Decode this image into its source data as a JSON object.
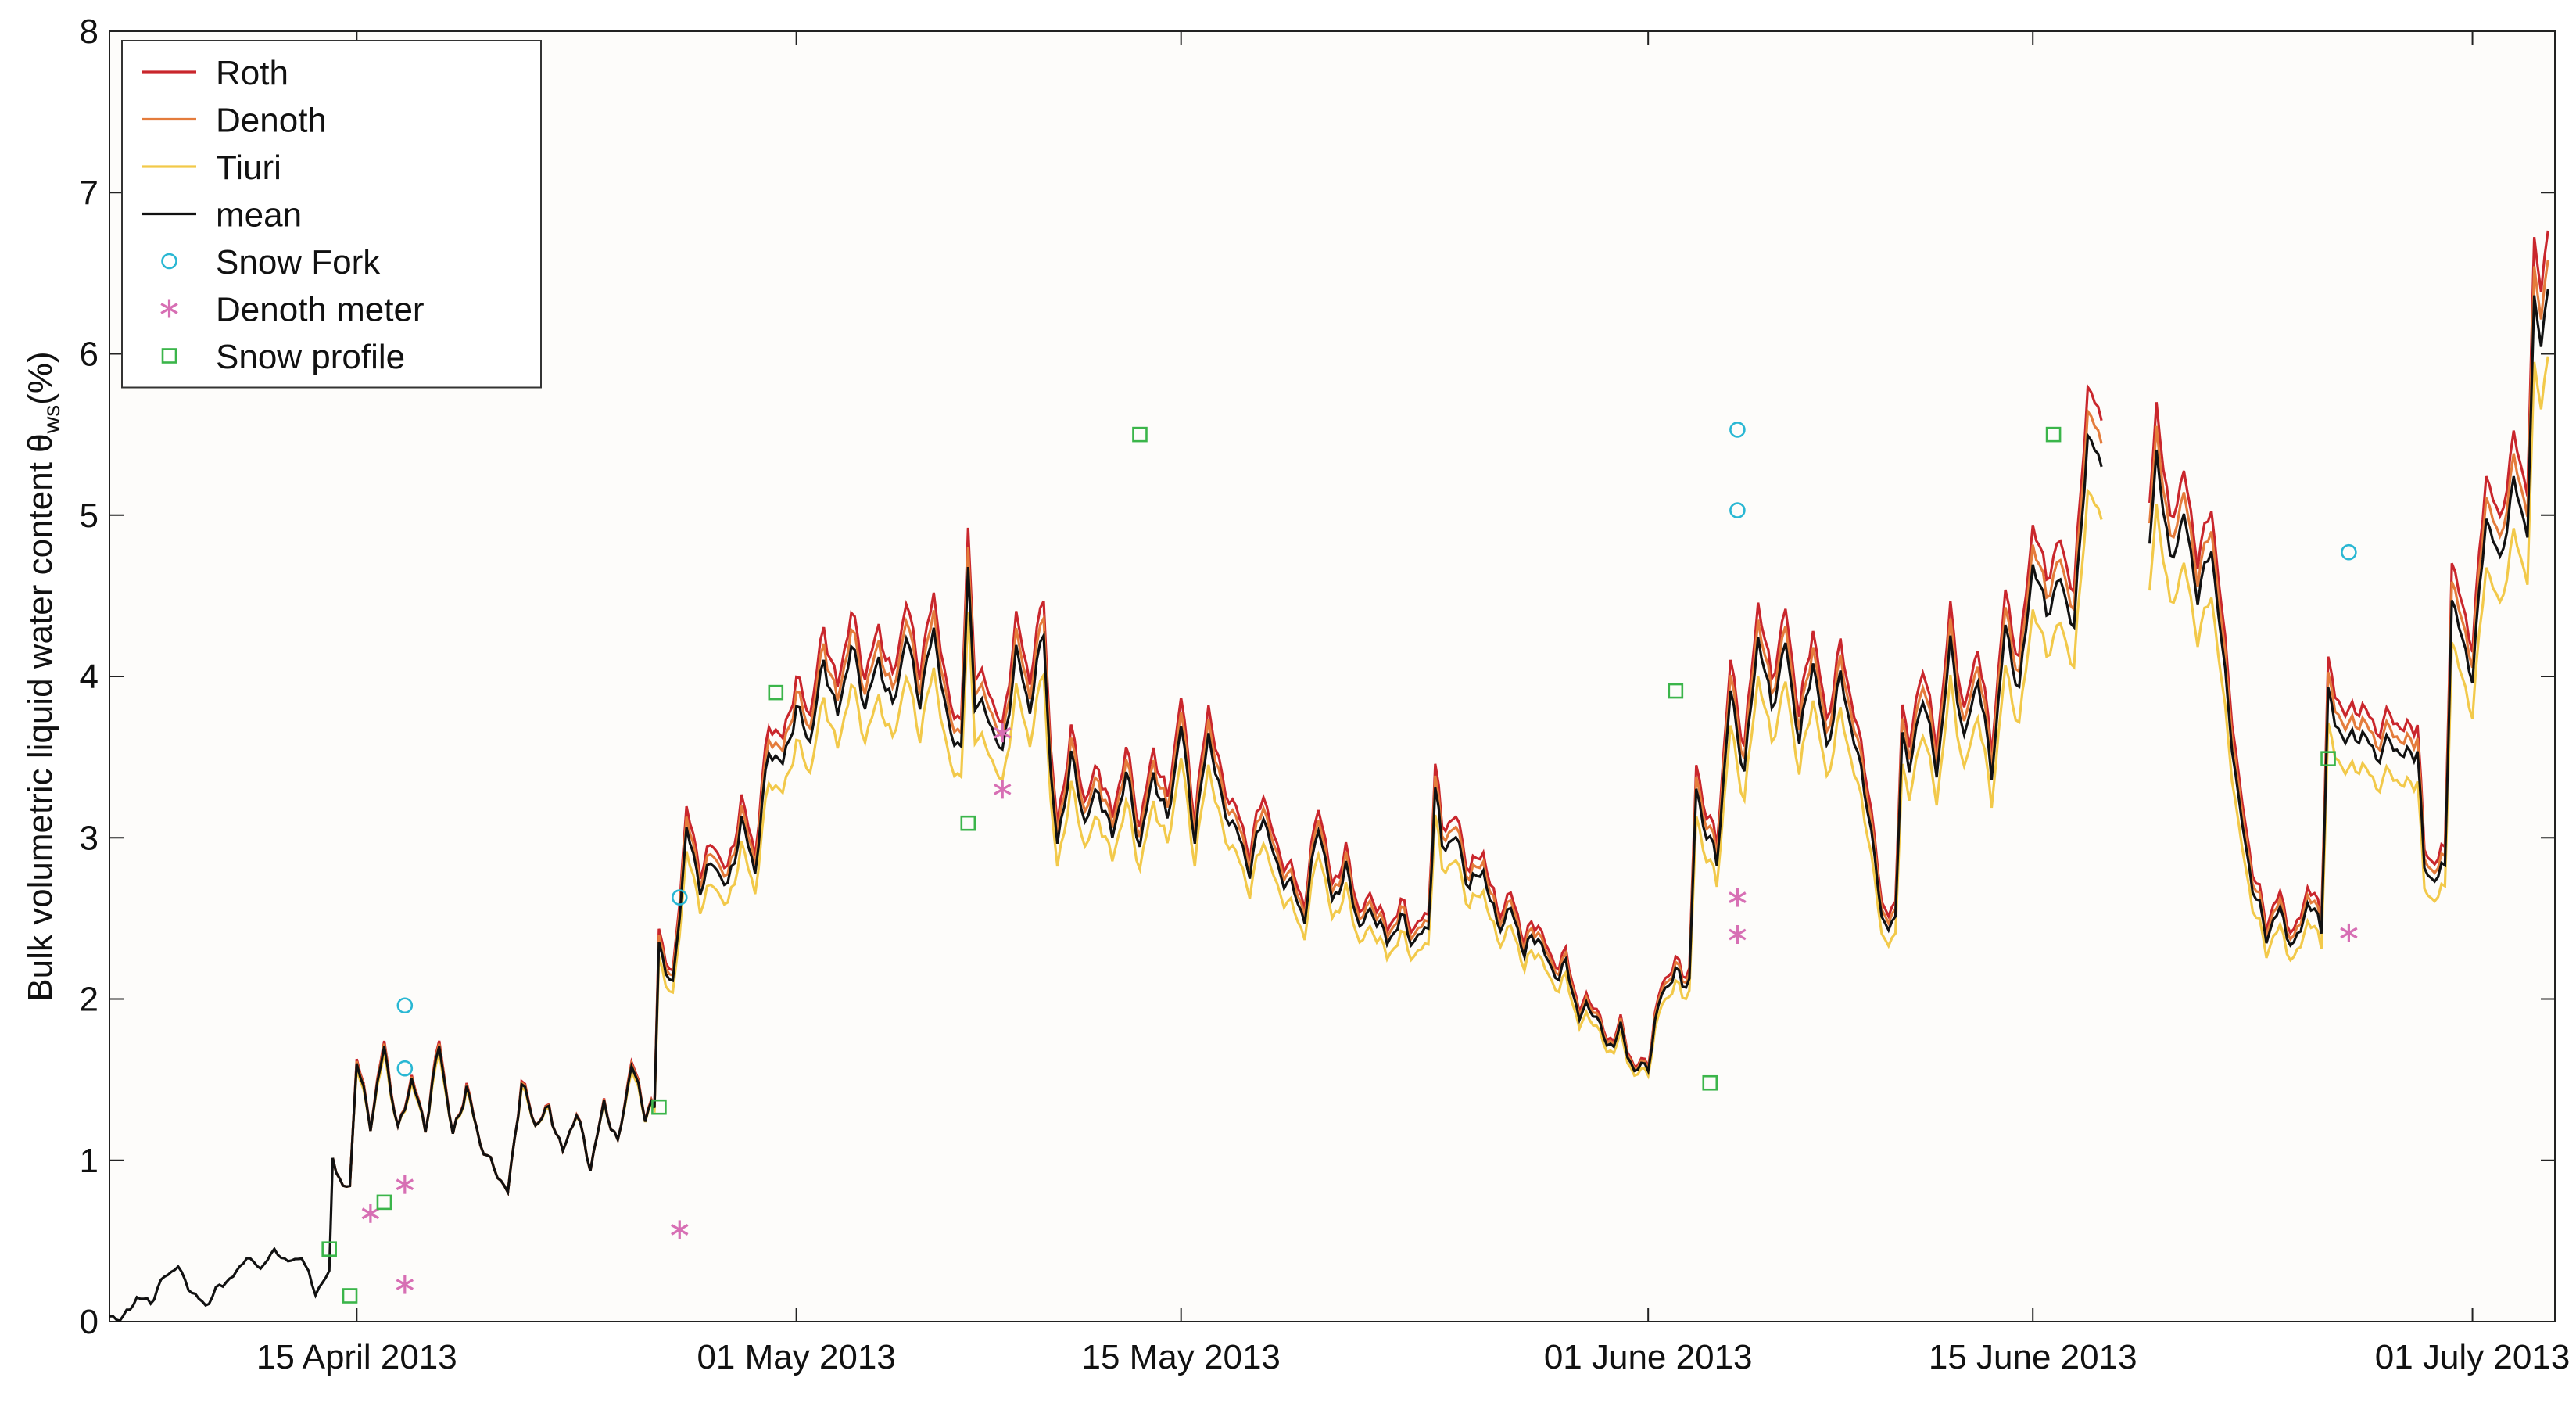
{
  "chart_data": {
    "type": "line",
    "ylabel_main": "Bulk volumetric liquid water content θ",
    "ylabel_sub": "ws",
    "ylabel_unit": "(%)",
    "xlabel": "",
    "ylim": [
      0,
      8
    ],
    "yticks": [
      0,
      1,
      2,
      3,
      4,
      5,
      6,
      7,
      8
    ],
    "xlim": [
      "2013-04-06",
      "2013-07-04"
    ],
    "xticks": [
      {
        "date": "2013-04-15",
        "label": "15 April 2013"
      },
      {
        "date": "2013-05-01",
        "label": "01 May 2013"
      },
      {
        "date": "2013-05-15",
        "label": "15 May 2013"
      },
      {
        "date": "2013-06-01",
        "label": "01 June 2013"
      },
      {
        "date": "2013-06-15",
        "label": "15 June 2013"
      },
      {
        "date": "2013-07-01",
        "label": "01 July 2013"
      }
    ],
    "legend_position": "top-left",
    "colors": {
      "background": "#fdfcfa",
      "roth": "#c9262c",
      "denoth": "#e47c3c",
      "tiuri": "#f2c94a",
      "mean": "#111111",
      "snow_fork": "#29b7d3",
      "denoth_meter": "#d76fb4",
      "snow_profile": "#3bb54a"
    },
    "legend": [
      {
        "label": "Roth",
        "kind": "line",
        "color": "#c9262c"
      },
      {
        "label": "Denoth",
        "kind": "line",
        "color": "#e47c3c"
      },
      {
        "label": "Tiuri",
        "kind": "line",
        "color": "#f2c94a"
      },
      {
        "label": "mean",
        "kind": "line",
        "color": "#111111"
      },
      {
        "label": "Snow Fork",
        "kind": "circle",
        "color": "#29b7d3"
      },
      {
        "label": "Denoth meter",
        "kind": "asterisk",
        "color": "#d76fb4"
      },
      {
        "label": "Snow profile",
        "kind": "square",
        "color": "#3bb54a"
      }
    ],
    "mean_series": [
      [
        "2013-04-06T00",
        0.03
      ],
      [
        "2013-04-06T12",
        0.02
      ],
      [
        "2013-04-07T00",
        0.15
      ],
      [
        "2013-04-07T12",
        0.12
      ],
      [
        "2013-04-08T00",
        0.28
      ],
      [
        "2013-04-08T12",
        0.34
      ],
      [
        "2013-04-09T00",
        0.18
      ],
      [
        "2013-04-09T12",
        0.1
      ],
      [
        "2013-04-10T00",
        0.22
      ],
      [
        "2013-04-10T12",
        0.28
      ],
      [
        "2013-04-11T00",
        0.4
      ],
      [
        "2013-04-11T12",
        0.33
      ],
      [
        "2013-04-12T00",
        0.44
      ],
      [
        "2013-04-12T12",
        0.37
      ],
      [
        "2013-04-13T00",
        0.4
      ],
      [
        "2013-04-13T12",
        0.18
      ],
      [
        "2013-04-14T00",
        0.3
      ],
      [
        "2013-04-14T03",
        1.02
      ],
      [
        "2013-04-14T12",
        0.82
      ],
      [
        "2013-04-14T18",
        0.85
      ],
      [
        "2013-04-15T00",
        1.62
      ],
      [
        "2013-04-15T12",
        1.22
      ],
      [
        "2013-04-16T00",
        1.7
      ],
      [
        "2013-04-16T12",
        1.18
      ],
      [
        "2013-04-17T00",
        1.5
      ],
      [
        "2013-04-17T12",
        1.2
      ],
      [
        "2013-04-18T00",
        1.72
      ],
      [
        "2013-04-18T12",
        1.15
      ],
      [
        "2013-04-19T00",
        1.45
      ],
      [
        "2013-04-19T12",
        1.1
      ],
      [
        "2013-04-20T00",
        0.95
      ],
      [
        "2013-04-20T12",
        0.8
      ],
      [
        "2013-04-21T00",
        1.48
      ],
      [
        "2013-04-21T12",
        1.22
      ],
      [
        "2013-04-22T00",
        1.32
      ],
      [
        "2013-04-22T12",
        1.05
      ],
      [
        "2013-04-23T00",
        1.3
      ],
      [
        "2013-04-23T12",
        0.95
      ],
      [
        "2013-04-24T00",
        1.35
      ],
      [
        "2013-04-24T12",
        1.1
      ],
      [
        "2013-04-25T00",
        1.6
      ],
      [
        "2013-04-25T12",
        1.28
      ],
      [
        "2013-04-25T20",
        1.35
      ],
      [
        "2013-04-26T00",
        2.35
      ],
      [
        "2013-04-26T12",
        2.05
      ],
      [
        "2013-04-27T00",
        3.05
      ],
      [
        "2013-04-27T12",
        2.7
      ],
      [
        "2013-04-28T00",
        2.85
      ],
      [
        "2013-04-28T12",
        2.68
      ],
      [
        "2013-04-29T00",
        3.1
      ],
      [
        "2013-04-29T12",
        2.8
      ],
      [
        "2013-04-30T00",
        3.55
      ],
      [
        "2013-04-30T12",
        3.45
      ],
      [
        "2013-05-01T00",
        3.8
      ],
      [
        "2013-05-01T12",
        3.6
      ],
      [
        "2013-05-02T00",
        4.1
      ],
      [
        "2013-05-02T12",
        3.75
      ],
      [
        "2013-05-03T00",
        4.2
      ],
      [
        "2013-05-03T12",
        3.82
      ],
      [
        "2013-05-04T00",
        4.1
      ],
      [
        "2013-05-04T12",
        3.8
      ],
      [
        "2013-05-05T00",
        4.25
      ],
      [
        "2013-05-05T12",
        3.85
      ],
      [
        "2013-05-06T00",
        4.3
      ],
      [
        "2013-05-06T12",
        3.7
      ],
      [
        "2013-05-07T00",
        3.55
      ],
      [
        "2013-05-07T06",
        4.65
      ],
      [
        "2013-05-07T12",
        3.85
      ],
      [
        "2013-05-08T00",
        3.75
      ],
      [
        "2013-05-08T12",
        3.5
      ],
      [
        "2013-05-09T00",
        4.15
      ],
      [
        "2013-05-09T12",
        3.8
      ],
      [
        "2013-05-10T00",
        4.3
      ],
      [
        "2013-05-10T06",
        3.4
      ],
      [
        "2013-05-10T12",
        2.95
      ],
      [
        "2013-05-11T00",
        3.5
      ],
      [
        "2013-05-11T12",
        3.1
      ],
      [
        "2013-05-12T00",
        3.3
      ],
      [
        "2013-05-12T12",
        3.0
      ],
      [
        "2013-05-13T00",
        3.4
      ],
      [
        "2013-05-13T12",
        2.95
      ],
      [
        "2013-05-14T00",
        3.4
      ],
      [
        "2013-05-14T12",
        3.1
      ],
      [
        "2013-05-15T00",
        3.7
      ],
      [
        "2013-05-15T12",
        3.0
      ],
      [
        "2013-05-16T00",
        3.65
      ],
      [
        "2013-05-16T12",
        3.2
      ],
      [
        "2013-05-17T00",
        3.05
      ],
      [
        "2013-05-17T12",
        2.8
      ],
      [
        "2013-05-18T00",
        3.15
      ],
      [
        "2013-05-18T12",
        2.8
      ],
      [
        "2013-05-19T00",
        2.7
      ],
      [
        "2013-05-19T12",
        2.5
      ],
      [
        "2013-05-20T00",
        3.1
      ],
      [
        "2013-05-20T12",
        2.6
      ],
      [
        "2013-05-21T00",
        2.8
      ],
      [
        "2013-05-21T12",
        2.45
      ],
      [
        "2013-05-22T00",
        2.55
      ],
      [
        "2013-05-22T12",
        2.35
      ],
      [
        "2013-05-23T00",
        2.5
      ],
      [
        "2013-05-23T12",
        2.35
      ],
      [
        "2013-05-24T00",
        2.45
      ],
      [
        "2013-05-24T06",
        3.3
      ],
      [
        "2013-05-24T12",
        2.95
      ],
      [
        "2013-05-25T00",
        3.0
      ],
      [
        "2013-05-25T12",
        2.7
      ],
      [
        "2013-05-26T00",
        2.8
      ],
      [
        "2013-05-26T12",
        2.45
      ],
      [
        "2013-05-27T00",
        2.55
      ],
      [
        "2013-05-27T12",
        2.3
      ],
      [
        "2013-05-28T00",
        2.4
      ],
      [
        "2013-05-28T12",
        2.15
      ],
      [
        "2013-05-29T00",
        2.2
      ],
      [
        "2013-05-29T12",
        1.9
      ],
      [
        "2013-05-30T00",
        1.95
      ],
      [
        "2013-05-30T12",
        1.7
      ],
      [
        "2013-05-31T00",
        1.8
      ],
      [
        "2013-05-31T12",
        1.55
      ],
      [
        "2013-06-01T00",
        1.6
      ],
      [
        "2013-06-01T12",
        2.05
      ],
      [
        "2013-06-02T00",
        2.15
      ],
      [
        "2013-06-02T12",
        2.1
      ],
      [
        "2013-06-02T18",
        3.3
      ],
      [
        "2013-06-03T00",
        3.1
      ],
      [
        "2013-06-03T12",
        2.85
      ],
      [
        "2013-06-04T00",
        3.9
      ],
      [
        "2013-06-04T12",
        3.4
      ],
      [
        "2013-06-05T00",
        4.25
      ],
      [
        "2013-06-05T12",
        3.8
      ],
      [
        "2013-06-06T00",
        4.2
      ],
      [
        "2013-06-06T12",
        3.6
      ],
      [
        "2013-06-07T00",
        4.1
      ],
      [
        "2013-06-07T12",
        3.55
      ],
      [
        "2013-06-08T00",
        4.0
      ],
      [
        "2013-06-08T12",
        3.6
      ],
      [
        "2013-06-09T00",
        3.2
      ],
      [
        "2013-06-09T12",
        2.5
      ],
      [
        "2013-06-10T00",
        2.45
      ],
      [
        "2013-06-10T06",
        3.7
      ],
      [
        "2013-06-10T12",
        3.4
      ],
      [
        "2013-06-11T00",
        3.9
      ],
      [
        "2013-06-11T12",
        3.4
      ],
      [
        "2013-06-12T00",
        4.2
      ],
      [
        "2013-06-12T12",
        3.6
      ],
      [
        "2013-06-13T00",
        4.0
      ],
      [
        "2013-06-13T12",
        3.4
      ],
      [
        "2013-06-14T00",
        4.3
      ],
      [
        "2013-06-14T12",
        3.9
      ],
      [
        "2013-06-15T00",
        4.7
      ],
      [
        "2013-06-15T12",
        4.4
      ],
      [
        "2013-06-16T00",
        4.6
      ],
      [
        "2013-06-16T12",
        4.3
      ],
      [
        "2013-06-17T00",
        5.5
      ],
      [
        "2013-06-17T12",
        5.3
      ]
    ],
    "mean_series_2": [
      [
        "2013-06-19T06",
        4.8
      ],
      [
        "2013-06-19T12",
        5.4
      ],
      [
        "2013-06-20T00",
        4.7
      ],
      [
        "2013-06-20T12",
        5.0
      ],
      [
        "2013-06-21T00",
        4.5
      ],
      [
        "2013-06-21T12",
        4.8
      ],
      [
        "2013-06-22T00",
        4.0
      ],
      [
        "2013-06-22T12",
        3.2
      ],
      [
        "2013-06-23T00",
        2.7
      ],
      [
        "2013-06-23T12",
        2.4
      ],
      [
        "2013-06-24T00",
        2.55
      ],
      [
        "2013-06-24T12",
        2.3
      ],
      [
        "2013-06-25T00",
        2.6
      ],
      [
        "2013-06-25T12",
        2.45
      ],
      [
        "2013-06-25T18",
        3.9
      ],
      [
        "2013-06-26T00",
        3.7
      ],
      [
        "2013-06-26T12",
        3.6
      ],
      [
        "2013-06-27T00",
        3.65
      ],
      [
        "2013-06-27T12",
        3.5
      ],
      [
        "2013-06-28T00",
        3.6
      ],
      [
        "2013-06-28T12",
        3.5
      ],
      [
        "2013-06-29T00",
        3.55
      ],
      [
        "2013-06-29T06",
        2.8
      ],
      [
        "2013-06-29T12",
        2.75
      ],
      [
        "2013-06-30T00",
        2.8
      ],
      [
        "2013-06-30T06",
        4.5
      ],
      [
        "2013-06-30T12",
        4.3
      ],
      [
        "2013-07-01T00",
        4.0
      ],
      [
        "2013-07-01T12",
        5.0
      ],
      [
        "2013-07-02T00",
        4.7
      ],
      [
        "2013-07-02T12",
        5.2
      ],
      [
        "2013-07-03T00",
        4.9
      ],
      [
        "2013-07-03T06",
        6.3
      ],
      [
        "2013-07-03T12",
        6.1
      ],
      [
        "2013-07-03T18",
        6.4
      ]
    ],
    "series": [
      {
        "name": "Roth",
        "offset_ratio": 1.07
      },
      {
        "name": "Denoth",
        "offset_ratio": 1.035
      },
      {
        "name": "Tiuri",
        "offset_ratio": 0.92
      },
      {
        "name": "mean",
        "offset_ratio": 1.0
      }
    ],
    "snow_fork": [
      [
        "2013-04-16T18",
        1.96
      ],
      [
        "2013-04-16T18",
        1.57
      ],
      [
        "2013-04-26T18",
        2.63
      ],
      [
        "2013-06-04T06",
        5.53
      ],
      [
        "2013-06-04T06",
        5.03
      ],
      [
        "2013-06-26T12",
        4.77
      ]
    ],
    "denoth_meter": [
      [
        "2013-04-15T12",
        0.67
      ],
      [
        "2013-04-16T18",
        0.85
      ],
      [
        "2013-04-16T18",
        0.23
      ],
      [
        "2013-04-26T18",
        0.57
      ],
      [
        "2013-05-08T12",
        3.65
      ],
      [
        "2013-05-08T12",
        3.3
      ],
      [
        "2013-06-04T06",
        2.63
      ],
      [
        "2013-06-04T06",
        2.4
      ],
      [
        "2013-06-26T12",
        2.41
      ]
    ],
    "snow_profile": [
      [
        "2013-04-14T00",
        0.45
      ],
      [
        "2013-04-14T18",
        0.16
      ],
      [
        "2013-04-16T00",
        0.74
      ],
      [
        "2013-04-26T00",
        1.33
      ],
      [
        "2013-04-30T06",
        3.9
      ],
      [
        "2013-05-07T06",
        3.09
      ],
      [
        "2013-05-13T12",
        5.5
      ],
      [
        "2013-06-02T00",
        3.91
      ],
      [
        "2013-06-03T06",
        1.48
      ],
      [
        "2013-06-15T18",
        5.5
      ],
      [
        "2013-06-25T18",
        3.49
      ]
    ]
  }
}
